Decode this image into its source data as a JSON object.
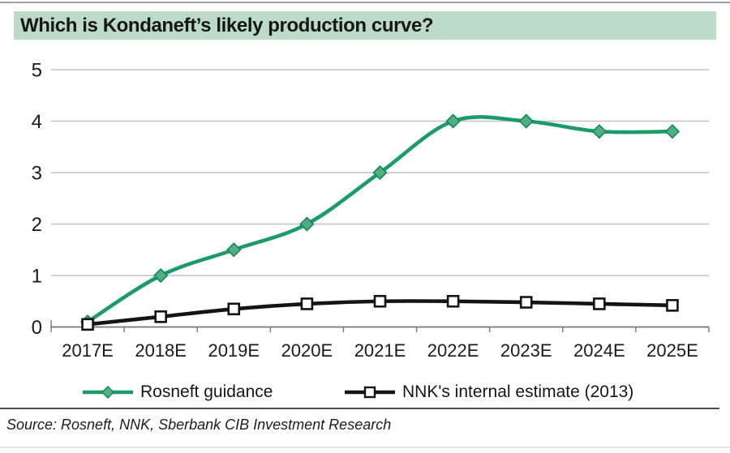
{
  "title": "Which is Kondaneft’s likely production curve?",
  "source": "Source: Rosneft, NNK, Sberbank CIB Investment Research",
  "colors": {
    "banner_bg": "#bcdac8",
    "title_text": "#161616",
    "green_line": "#1b9c67",
    "green_marker_fill": "#52ad80",
    "green_marker_stroke": "#0f8a58",
    "black_line": "#141414",
    "square_marker_fill": "#ffffff",
    "gridline": "#c2c2c2",
    "axis": "#777777",
    "tick_label": "#1a1a1a",
    "top_rule": "#9d9d9d",
    "separator": "#4c4c4c",
    "bottom_rule": "#e4e4e4"
  },
  "legend": [
    {
      "label": "Rosneft guidance",
      "marker": "diamond"
    },
    {
      "label": "NNK's internal estimate (2013)",
      "marker": "square"
    }
  ],
  "chart_data": {
    "type": "line",
    "categories": [
      "2017E",
      "2018E",
      "2019E",
      "2020E",
      "2021E",
      "2022E",
      "2023E",
      "2024E",
      "2025E"
    ],
    "series": [
      {
        "name": "Rosneft guidance",
        "values": [
          0.1,
          1.0,
          1.5,
          2.0,
          3.0,
          4.0,
          4.0,
          3.8,
          3.8
        ],
        "color": "#1b9c67",
        "marker": "diamond"
      },
      {
        "name": "NNK's internal estimate (2013)",
        "values": [
          0.05,
          0.2,
          0.35,
          0.45,
          0.5,
          0.5,
          0.48,
          0.45,
          0.42
        ],
        "color": "#141414",
        "marker": "square"
      }
    ],
    "title": "Which is Kondaneft’s likely production curve?",
    "xlabel": "",
    "ylabel": "",
    "ylim": [
      0,
      5
    ],
    "yticks": [
      0,
      1,
      2,
      3,
      4,
      5
    ],
    "grid": "horizontal",
    "legend_position": "bottom"
  }
}
